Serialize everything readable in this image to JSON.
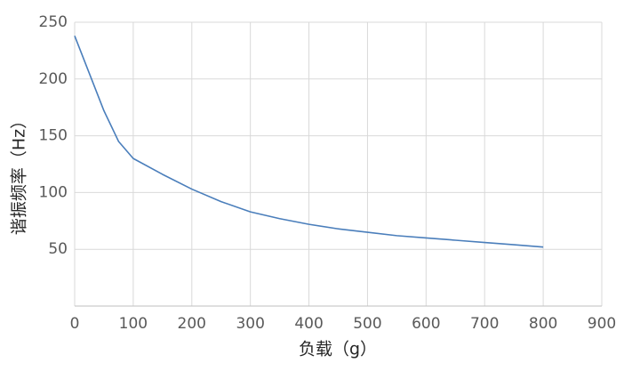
{
  "chart_data": {
    "type": "line",
    "x_label": "负载（g）",
    "y_label": "谐振频率（Hz）",
    "x": [
      0,
      25,
      50,
      75,
      100,
      150,
      200,
      250,
      300,
      350,
      400,
      450,
      500,
      550,
      600,
      650,
      700,
      750,
      800
    ],
    "series": [
      {
        "color": "#4a7ebb",
        "values": [
          238,
          205,
          172,
          145,
          130,
          116,
          103,
          92,
          83,
          77,
          72,
          68,
          65,
          62,
          60,
          58,
          56,
          54,
          52
        ]
      }
    ],
    "xlim": [
      0,
      900
    ],
    "xticks": [
      0,
      100,
      200,
      300,
      400,
      500,
      600,
      700,
      800,
      900
    ],
    "ylim": [
      0,
      250
    ],
    "yticks": [
      50,
      100,
      150,
      200,
      250
    ],
    "grid": true
  }
}
